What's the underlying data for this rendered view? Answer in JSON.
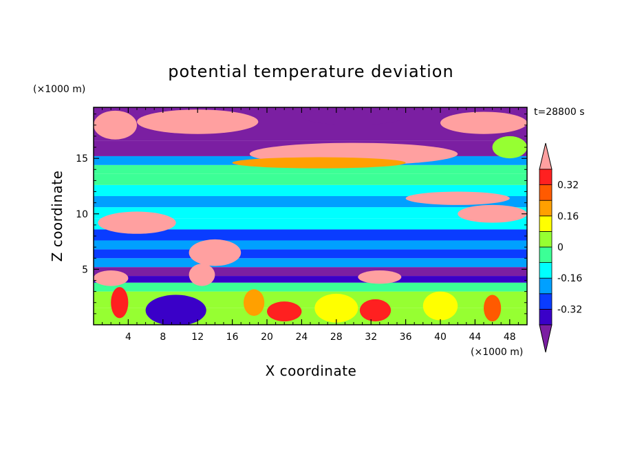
{
  "chart_data": {
    "type": "heatmap",
    "title": "potential temperature deviation",
    "xlabel": "X coordinate",
    "ylabel": "Z coordinate",
    "x_unit": "(×1000 m)",
    "y_unit": "(×1000 m)",
    "time_label": "t=28800 s",
    "xlim": [
      0,
      50
    ],
    "ylim": [
      0,
      19.6
    ],
    "x_ticks": [
      4,
      8,
      12,
      16,
      20,
      24,
      28,
      32,
      36,
      40,
      44,
      48
    ],
    "y_ticks": [
      5,
      10,
      15
    ],
    "colorbar": {
      "levels": [
        -0.4,
        -0.32,
        -0.24,
        -0.16,
        -0.08,
        0,
        0.08,
        0.16,
        0.24,
        0.32,
        0.4
      ],
      "labels": [
        "0.32",
        "0.16",
        "0",
        "-0.16",
        "-0.32"
      ],
      "label_values": [
        0.32,
        0.16,
        0,
        -0.16,
        -0.32
      ],
      "colors": [
        "#7b1fa2",
        "#3a00c8",
        "#0a3cff",
        "#00a0ff",
        "#00ffff",
        "#3cff96",
        "#96ff32",
        "#ffff00",
        "#ffa000",
        "#ff5a00",
        "#ff2020",
        "#ffa0a0"
      ]
    },
    "bands": [
      {
        "z0": 0,
        "z1": 1.5,
        "level": 6
      },
      {
        "z0": 1.5,
        "z1": 3,
        "level": 6
      },
      {
        "z0": 3,
        "z1": 3.8,
        "level": 5
      },
      {
        "z0": 3.8,
        "z1": 4.4,
        "level": 1
      },
      {
        "z0": 4.4,
        "z1": 5.2,
        "level": 0
      },
      {
        "z0": 5.2,
        "z1": 6.0,
        "level": 3
      },
      {
        "z0": 6.0,
        "z1": 6.8,
        "level": 2
      },
      {
        "z0": 6.8,
        "z1": 7.6,
        "level": 3
      },
      {
        "z0": 7.6,
        "z1": 8.6,
        "level": 2
      },
      {
        "z0": 8.6,
        "z1": 9.6,
        "level": 4
      },
      {
        "z0": 9.6,
        "z1": 10.6,
        "level": 4
      },
      {
        "z0": 10.6,
        "z1": 11.6,
        "level": 3
      },
      {
        "z0": 11.6,
        "z1": 12.6,
        "level": 4
      },
      {
        "z0": 12.6,
        "z1": 13.6,
        "level": 5
      },
      {
        "z0": 13.6,
        "z1": 14.4,
        "level": 5
      },
      {
        "z0": 14.4,
        "z1": 15.2,
        "level": 3
      },
      {
        "z0": 15.2,
        "z1": 16.6,
        "level": 0
      },
      {
        "z0": 16.6,
        "z1": 19.6,
        "level": 0
      }
    ],
    "blobs": [
      {
        "x": 2.5,
        "z": 18.0,
        "rx": 2.5,
        "rz": 1.3,
        "level": 11
      },
      {
        "x": 12,
        "z": 18.3,
        "rx": 7,
        "rz": 1.1,
        "level": 11
      },
      {
        "x": 30,
        "z": 18.8,
        "rx": 6,
        "rz": 0.8,
        "level": 0
      },
      {
        "x": 30,
        "z": 15.4,
        "rx": 12,
        "rz": 1.0,
        "level": 11
      },
      {
        "x": 26,
        "z": 14.6,
        "rx": 10,
        "rz": 0.5,
        "level": 8
      },
      {
        "x": 45,
        "z": 18.2,
        "rx": 5,
        "rz": 1.0,
        "level": 11
      },
      {
        "x": 48,
        "z": 16.0,
        "rx": 2,
        "rz": 1.0,
        "level": 6
      },
      {
        "x": 42,
        "z": 11.4,
        "rx": 6,
        "rz": 0.6,
        "level": 11
      },
      {
        "x": 46,
        "z": 10.0,
        "rx": 4,
        "rz": 0.8,
        "level": 11
      },
      {
        "x": 5,
        "z": 9.2,
        "rx": 4.5,
        "rz": 1.0,
        "level": 11
      },
      {
        "x": 14,
        "z": 6.5,
        "rx": 3,
        "rz": 1.2,
        "level": 11
      },
      {
        "x": 12.5,
        "z": 4.5,
        "rx": 1.5,
        "rz": 1.0,
        "level": 11
      },
      {
        "x": 2,
        "z": 4.2,
        "rx": 2,
        "rz": 0.7,
        "level": 11
      },
      {
        "x": 33,
        "z": 4.3,
        "rx": 2.5,
        "rz": 0.6,
        "level": 11
      },
      {
        "x": 9.5,
        "z": 1.3,
        "rx": 3.5,
        "rz": 1.4,
        "level": 1
      },
      {
        "x": 3,
        "z": 2.0,
        "rx": 1.0,
        "rz": 1.4,
        "level": 10
      },
      {
        "x": 22,
        "z": 1.2,
        "rx": 2,
        "rz": 0.9,
        "level": 10
      },
      {
        "x": 32.5,
        "z": 1.3,
        "rx": 1.8,
        "rz": 1.0,
        "level": 10
      },
      {
        "x": 18.5,
        "z": 2.0,
        "rx": 1.2,
        "rz": 1.2,
        "level": 8
      },
      {
        "x": 46,
        "z": 1.5,
        "rx": 1.0,
        "rz": 1.2,
        "level": 9
      },
      {
        "x": 28,
        "z": 1.5,
        "rx": 2.5,
        "rz": 1.3,
        "level": 7
      },
      {
        "x": 40,
        "z": 1.7,
        "rx": 2.0,
        "rz": 1.3,
        "level": 7
      }
    ]
  }
}
